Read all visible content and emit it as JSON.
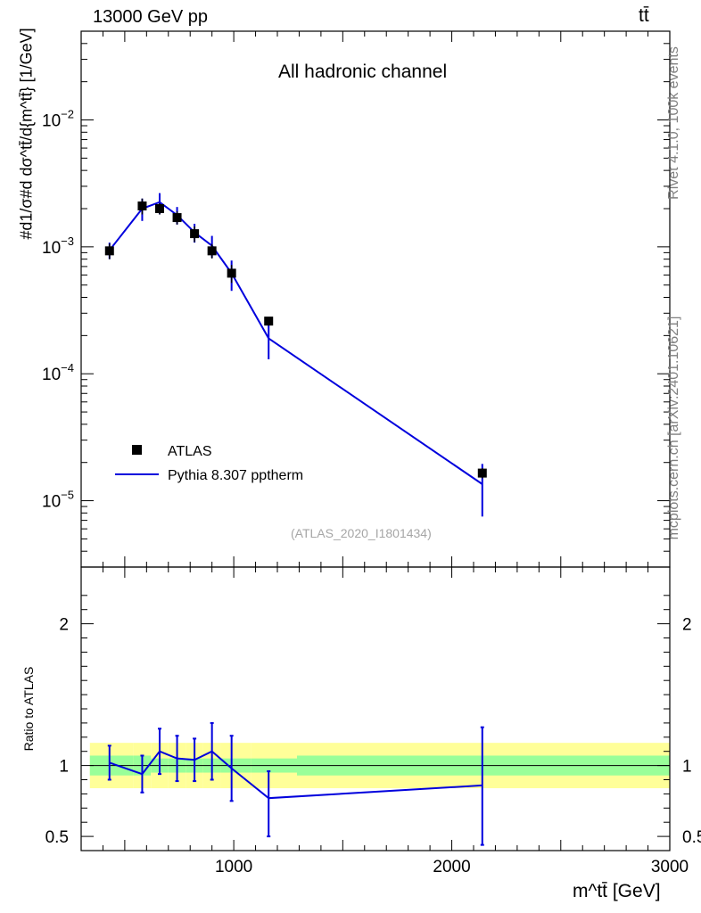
{
  "header": {
    "energy": "13000 GeV pp",
    "process": "tt̄"
  },
  "side_text": {
    "rivet": "Rivet 4.1.0,  100k events",
    "source": "mcplots.cern.ch [arXiv:2401.10621]"
  },
  "chart_data": {
    "type": "line",
    "title": "All hadronic channel",
    "analysis_tag": "(ATLAS_2020_I1801434)",
    "xlabel": "m^tt̄ [GeV]",
    "ylabel": "#d1/σ#d dσ^tt̄/d{m^tt̄} [1/GeV]",
    "ratio_ylabel": "Ratio to ATLAS",
    "xlim": [
      300,
      3000
    ],
    "ylim": [
      3e-06,
      0.05
    ],
    "ratio_ylim": [
      0.4,
      2.4
    ],
    "x_ticks": [
      1000,
      2000,
      3000
    ],
    "x_tick_labels": [
      "1000",
      "2000",
      "3000"
    ],
    "y_ticks": [
      1e-05,
      0.0001,
      0.001,
      0.01
    ],
    "y_tick_labels": [
      {
        "base": "10",
        "exp": "−5"
      },
      {
        "base": "10",
        "exp": "−4"
      },
      {
        "base": "10",
        "exp": "−3"
      },
      {
        "base": "10",
        "exp": "−2"
      }
    ],
    "ratio_ticks": [
      0.5,
      1,
      2
    ],
    "ratio_tick_labels": [
      "0.5",
      "1",
      "2"
    ],
    "legend": {
      "position": "lower-left",
      "entries": [
        "ATLAS",
        "Pythia 8.307 pptherm"
      ]
    },
    "bin_edges": [
      340,
      540,
      620,
      700,
      780,
      860,
      940,
      1080,
      1290,
      3000
    ],
    "series": [
      {
        "name": "ATLAS",
        "style": "markers",
        "x": [
          430,
          580,
          660,
          740,
          820,
          900,
          990,
          1160,
          2140
        ],
        "y": [
          0.00093,
          0.0021,
          0.002,
          0.0017,
          0.00127,
          0.00093,
          0.00062,
          0.00026,
          1.65e-05
        ],
        "yerr_low": [
          0.00013,
          0.0003,
          0.0002,
          0.0002,
          0.00018,
          0.00012,
          0.0001,
          2e-05,
          1.5e-06
        ],
        "yerr_high": [
          0.00013,
          0.0003,
          0.0002,
          0.0002,
          0.00018,
          0.00012,
          0.0001,
          2e-05,
          1.5e-06
        ],
        "rel_band_inner": [
          0.07,
          0.07,
          0.05,
          0.05,
          0.05,
          0.05,
          0.05,
          0.05,
          0.07
        ],
        "rel_band_outer": [
          0.16,
          0.16,
          0.16,
          0.16,
          0.16,
          0.16,
          0.16,
          0.16,
          0.16
        ]
      },
      {
        "name": "Pythia 8.307 pptherm",
        "style": "line",
        "x": [
          430,
          580,
          660,
          740,
          820,
          900,
          990,
          1160,
          2140
        ],
        "y": [
          0.00094,
          0.002,
          0.00225,
          0.00178,
          0.0013,
          0.00102,
          0.00062,
          0.00019,
          1.35e-05
        ],
        "yerr_low": [
          0.00014,
          0.0004,
          0.00045,
          0.00028,
          0.00022,
          0.0002,
          0.00017,
          6e-05,
          6e-06
        ],
        "yerr_high": [
          0.00014,
          0.0004,
          0.0004,
          0.00028,
          0.00022,
          0.0002,
          0.00016,
          6e-05,
          6e-06
        ],
        "ratio": [
          1.02,
          0.94,
          1.1,
          1.05,
          1.04,
          1.1,
          0.98,
          0.77,
          0.86
        ],
        "ratio_err_low": [
          0.12,
          0.13,
          0.16,
          0.16,
          0.15,
          0.2,
          0.23,
          0.27,
          0.42
        ],
        "ratio_err_high": [
          0.12,
          0.13,
          0.16,
          0.16,
          0.15,
          0.2,
          0.23,
          0.19,
          0.41
        ]
      }
    ]
  }
}
